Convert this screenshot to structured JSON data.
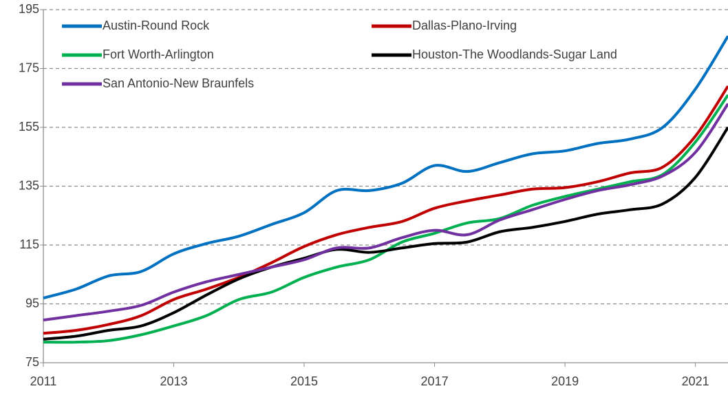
{
  "chart_data": {
    "type": "line",
    "x": [
      2011,
      2011.5,
      2012,
      2012.5,
      2013,
      2013.5,
      2014,
      2014.5,
      2015,
      2015.5,
      2016,
      2016.5,
      2017,
      2017.5,
      2018,
      2018.5,
      2019,
      2019.5,
      2020,
      2020.5,
      2021,
      2021.5
    ],
    "series": [
      {
        "name": "Austin-Round Rock",
        "color": "#0070c0",
        "values": [
          97,
          100,
          104.5,
          106,
          112,
          115.5,
          118,
          122,
          126,
          133.5,
          133.5,
          136,
          142,
          140,
          143,
          146,
          147,
          149.5,
          151,
          155,
          168,
          186
        ]
      },
      {
        "name": "Dallas-Plano-Irving",
        "color": "#c00000",
        "values": [
          85,
          86,
          88,
          91,
          96.5,
          100,
          104,
          109,
          114.5,
          118.5,
          121,
          123,
          127.5,
          130,
          132,
          134,
          134.5,
          136.5,
          139.5,
          141.5,
          152,
          169
        ]
      },
      {
        "name": "Fort Worth-Arlington",
        "color": "#00b050",
        "values": [
          82,
          82,
          82.5,
          84.5,
          87.5,
          91,
          96.5,
          99,
          104,
          107.5,
          110,
          116,
          119,
          122.5,
          124,
          128.5,
          131.5,
          134,
          136.5,
          139,
          150,
          166
        ]
      },
      {
        "name": "Houston-The Woodlands-Sugar Land",
        "color": "#000000",
        "values": [
          83,
          84,
          86,
          87.5,
          92,
          98,
          103.5,
          107.5,
          110.5,
          113.5,
          112.5,
          114,
          115.5,
          116,
          119.5,
          121,
          123,
          125.5,
          127,
          129,
          138,
          155
        ]
      },
      {
        "name": "San Antonio-New Braunfels",
        "color": "#7030a0",
        "values": [
          89.5,
          91,
          92.5,
          94.5,
          99,
          102.5,
          105,
          107.5,
          110,
          114,
          114,
          117.5,
          120,
          118.5,
          123.5,
          127,
          130.5,
          133.5,
          135.5,
          138.5,
          146.5,
          163
        ]
      }
    ],
    "xlim": [
      2011,
      2021.5
    ],
    "xticks": [
      2011,
      2013,
      2015,
      2017,
      2019,
      2021
    ],
    "ylim": [
      75,
      195
    ],
    "yticks": [
      75,
      95,
      115,
      135,
      155,
      175,
      195
    ],
    "grid": true,
    "legend": "top"
  }
}
